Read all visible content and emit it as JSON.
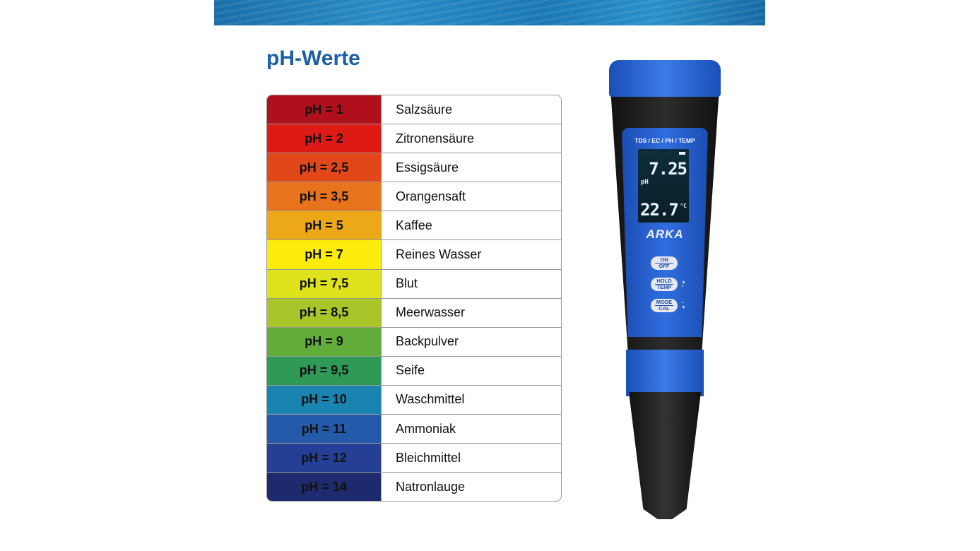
{
  "title": "pH-Werte",
  "rows": [
    {
      "ph": "pH = 1",
      "substance": "Salzsäure",
      "color": "#b0101c"
    },
    {
      "ph": "pH = 2",
      "substance": "Zitronensäure",
      "color": "#de1a17"
    },
    {
      "ph": "pH = 2,5",
      "substance": "Essigsäure",
      "color": "#e2471a"
    },
    {
      "ph": "pH = 3,5",
      "substance": "Orangensaft",
      "color": "#e8731c"
    },
    {
      "ph": "pH = 5",
      "substance": "Kaffee",
      "color": "#eca816"
    },
    {
      "ph": "pH = 7",
      "substance": "Reines Wasser",
      "color": "#fcec0c"
    },
    {
      "ph": "pH = 7,5",
      "substance": "Blut",
      "color": "#dde21a"
    },
    {
      "ph": "pH = 8,5",
      "substance": "Meerwasser",
      "color": "#a8c52a"
    },
    {
      "ph": "pH = 9",
      "substance": "Backpulver",
      "color": "#62ad3a"
    },
    {
      "ph": "pH = 9,5",
      "substance": "Seife",
      "color": "#2e9a56"
    },
    {
      "ph": "pH = 10",
      "substance": "Waschmittel",
      "color": "#1a84b0"
    },
    {
      "ph": "pH = 11",
      "substance": "Ammoniak",
      "color": "#2559aa"
    },
    {
      "ph": "pH = 12",
      "substance": "Bleichmittel",
      "color": "#253f96"
    },
    {
      "ph": "pH = 14",
      "substance": "Natronlauge",
      "color": "#1d2a6e"
    }
  ],
  "meter": {
    "panel_title": "TDS / EC / PH / TEMP",
    "ph_value": "7.25",
    "ph_unit": "pH",
    "temp_value": "22.7",
    "temp_unit": "°C",
    "logo": "ARKA",
    "buttons": [
      {
        "top": "ON",
        "bottom": "OFF"
      },
      {
        "top": "HOLD",
        "bottom": "TEMP"
      },
      {
        "top": "MODE",
        "bottom": "CAL"
      }
    ]
  }
}
